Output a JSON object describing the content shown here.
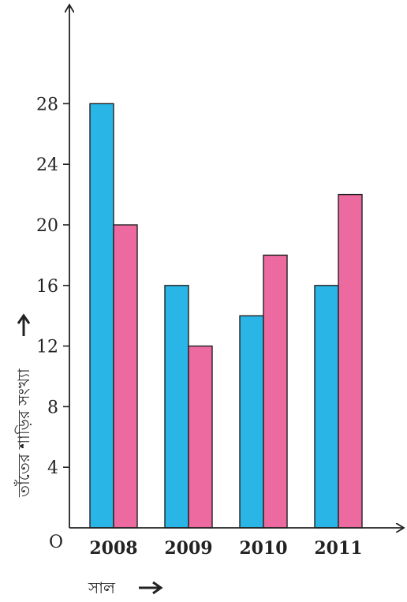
{
  "chart_data": {
    "type": "bar",
    "categories": [
      "2008",
      "2009",
      "2010",
      "2011"
    ],
    "series": [
      {
        "values": [
          28,
          16,
          14,
          16
        ],
        "color": "#29b6e6"
      },
      {
        "values": [
          20,
          12,
          18,
          22
        ],
        "color": "#ec6aa0"
      }
    ],
    "xlabel": "সাল",
    "ylabel": "তাঁতের শাড়ির সংখ্যা",
    "origin_label": "O",
    "yticks": [
      4,
      8,
      12,
      16,
      20,
      24,
      28
    ],
    "ylim": [
      0,
      30
    ],
    "grid": false,
    "legend": "none"
  }
}
